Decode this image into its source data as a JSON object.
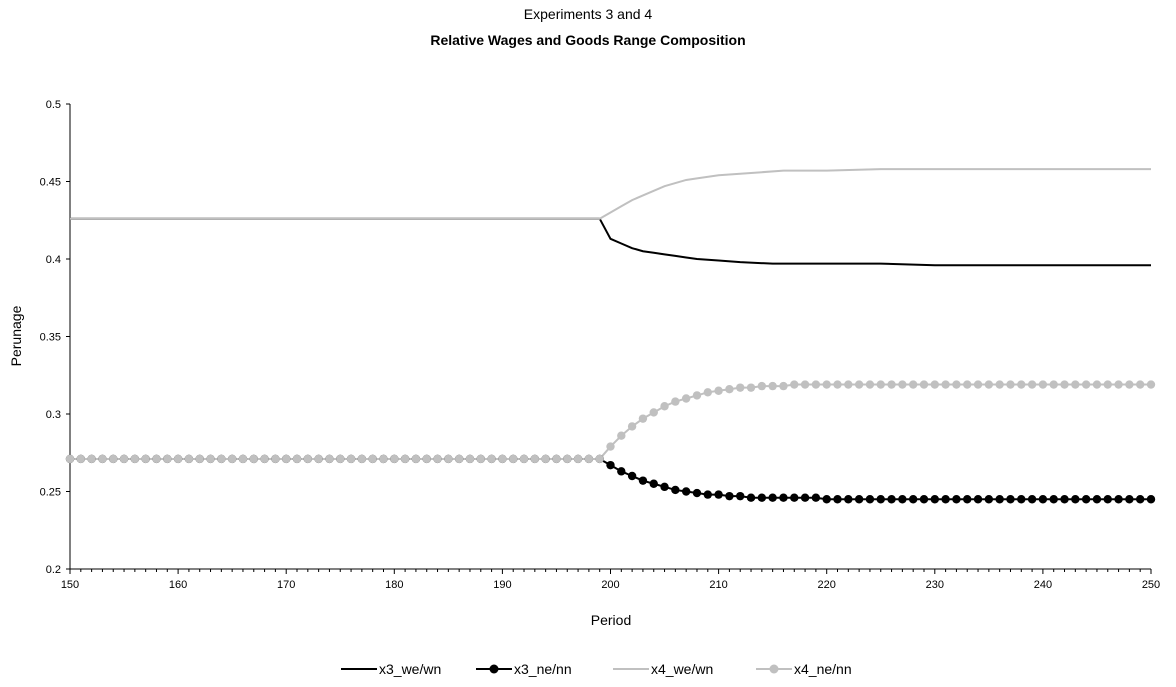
{
  "chart_data": {
    "type": "line",
    "title": "Experiments 3 and 4",
    "subtitle": "Relative Wages and Goods Range Composition",
    "xlabel": "Period",
    "ylabel": "Perunage",
    "xlim": [
      150,
      250
    ],
    "ylim": [
      0.2,
      0.5
    ],
    "xticks": [
      "150",
      "160",
      "170",
      "180",
      "190",
      "200",
      "210",
      "220",
      "230",
      "240",
      "250"
    ],
    "yticks": [
      "0.2",
      "0.25",
      "0.3",
      "0.35",
      "0.4",
      "0.45",
      "0.5"
    ],
    "grid": false,
    "legend_position": "bottom",
    "series": [
      {
        "name": "x3_we/wn",
        "color": "#000000",
        "marker": "none",
        "points": [
          [
            150,
            0.426
          ],
          [
            199,
            0.426
          ],
          [
            200,
            0.413
          ],
          [
            201,
            0.41
          ],
          [
            202,
            0.407
          ],
          [
            203,
            0.405
          ],
          [
            204,
            0.404
          ],
          [
            205,
            0.403
          ],
          [
            206,
            0.402
          ],
          [
            207,
            0.401
          ],
          [
            208,
            0.4
          ],
          [
            210,
            0.399
          ],
          [
            212,
            0.398
          ],
          [
            215,
            0.397
          ],
          [
            220,
            0.397
          ],
          [
            225,
            0.397
          ],
          [
            230,
            0.396
          ],
          [
            240,
            0.396
          ],
          [
            250,
            0.396
          ]
        ]
      },
      {
        "name": "x3_ne/nn",
        "color": "#000000",
        "marker": "circle",
        "points": [
          [
            150,
            0.271
          ],
          [
            199,
            0.271
          ],
          [
            200,
            0.267
          ],
          [
            201,
            0.263
          ],
          [
            202,
            0.26
          ],
          [
            203,
            0.257
          ],
          [
            204,
            0.255
          ],
          [
            205,
            0.253
          ],
          [
            206,
            0.251
          ],
          [
            207,
            0.25
          ],
          [
            208,
            0.249
          ],
          [
            209,
            0.248
          ],
          [
            210,
            0.248
          ],
          [
            211,
            0.247
          ],
          [
            212,
            0.247
          ],
          [
            213,
            0.246
          ],
          [
            214,
            0.246
          ],
          [
            215,
            0.246
          ],
          [
            216,
            0.246
          ],
          [
            217,
            0.246
          ],
          [
            218,
            0.246
          ],
          [
            219,
            0.246
          ],
          [
            220,
            0.245
          ],
          [
            225,
            0.245
          ],
          [
            230,
            0.245
          ],
          [
            240,
            0.245
          ],
          [
            250,
            0.245
          ]
        ]
      },
      {
        "name": "x4_we/wn",
        "color": "#c0c0c0",
        "marker": "none",
        "points": [
          [
            150,
            0.426
          ],
          [
            199,
            0.426
          ],
          [
            200,
            0.43
          ],
          [
            201,
            0.434
          ],
          [
            202,
            0.438
          ],
          [
            203,
            0.441
          ],
          [
            204,
            0.444
          ],
          [
            205,
            0.447
          ],
          [
            206,
            0.449
          ],
          [
            207,
            0.451
          ],
          [
            208,
            0.452
          ],
          [
            210,
            0.454
          ],
          [
            212,
            0.455
          ],
          [
            214,
            0.456
          ],
          [
            216,
            0.457
          ],
          [
            220,
            0.457
          ],
          [
            225,
            0.458
          ],
          [
            230,
            0.458
          ],
          [
            240,
            0.458
          ],
          [
            250,
            0.458
          ]
        ]
      },
      {
        "name": "x4_ne/nn",
        "color": "#c0c0c0",
        "marker": "circle",
        "points": [
          [
            150,
            0.271
          ],
          [
            199,
            0.271
          ],
          [
            200,
            0.279
          ],
          [
            201,
            0.286
          ],
          [
            202,
            0.292
          ],
          [
            203,
            0.297
          ],
          [
            204,
            0.301
          ],
          [
            205,
            0.305
          ],
          [
            206,
            0.308
          ],
          [
            207,
            0.31
          ],
          [
            208,
            0.312
          ],
          [
            209,
            0.314
          ],
          [
            210,
            0.315
          ],
          [
            211,
            0.316
          ],
          [
            212,
            0.317
          ],
          [
            213,
            0.317
          ],
          [
            214,
            0.318
          ],
          [
            215,
            0.318
          ],
          [
            216,
            0.318
          ],
          [
            217,
            0.319
          ],
          [
            218,
            0.319
          ],
          [
            219,
            0.319
          ],
          [
            220,
            0.319
          ],
          [
            225,
            0.319
          ],
          [
            230,
            0.319
          ],
          [
            240,
            0.319
          ],
          [
            250,
            0.319
          ]
        ]
      }
    ]
  }
}
